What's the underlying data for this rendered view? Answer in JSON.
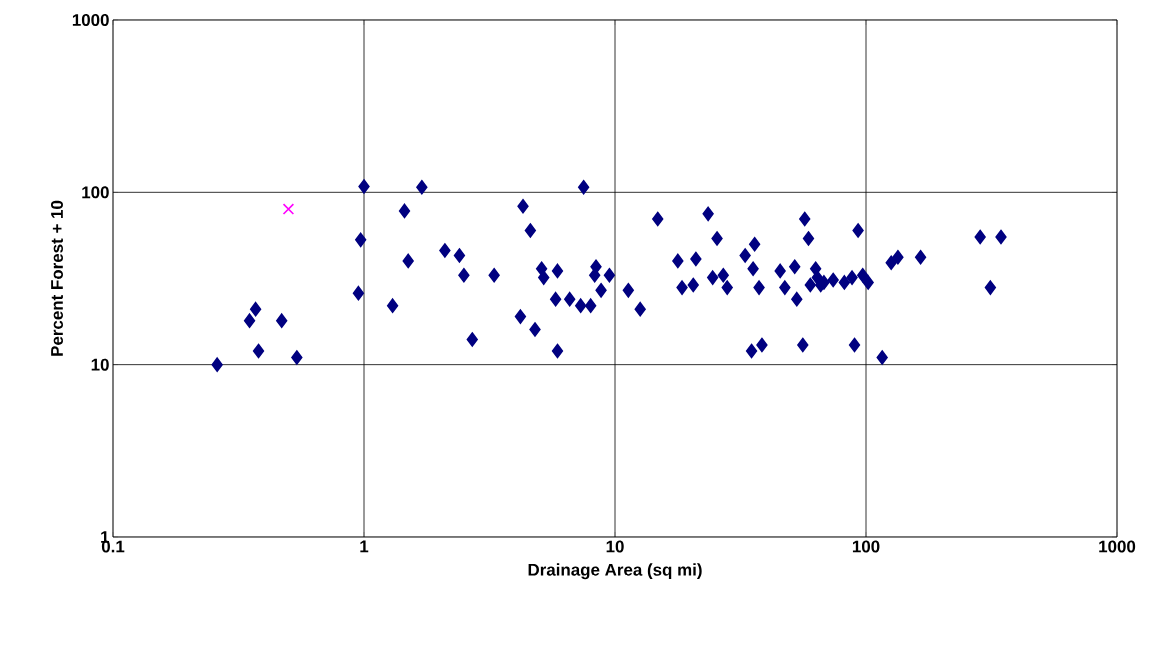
{
  "chart_data": {
    "type": "scatter",
    "xlabel": "Drainage Area (sq mi)",
    "ylabel": "Percent Forest + 10",
    "log": "xy",
    "grid": true,
    "xlim": [
      0.1,
      1000
    ],
    "ylim": [
      1,
      1000
    ],
    "xticks": [
      0.1,
      1,
      10,
      100,
      1000
    ],
    "yticks": [
      1,
      10,
      100,
      1000
    ],
    "series": [
      {
        "color": "#000080",
        "marker": "diamond",
        "x": [
          0.26,
          0.35,
          0.37,
          0.38,
          0.47,
          0.54,
          0.95,
          0.97,
          1.0,
          1.3,
          1.45,
          1.5,
          1.7,
          2.1,
          2.4,
          2.5,
          2.7,
          3.3,
          4.2,
          4.3,
          4.6,
          4.8,
          5.1,
          5.2,
          5.8,
          5.9,
          5.9,
          6.6,
          7.3,
          7.5,
          8.0,
          8.3,
          8.4,
          8.8,
          9.5,
          11.3,
          12.6,
          14.8,
          17.8,
          18.5,
          20.5,
          21,
          23.5,
          24.5,
          25.5,
          27,
          28,
          33,
          35,
          35.5,
          36,
          37.5,
          38.5,
          45.5,
          47.5,
          52,
          53,
          56,
          57,
          59,
          60,
          63,
          64,
          66,
          68,
          74,
          82,
          88,
          90,
          93,
          97,
          102,
          116,
          126,
          134,
          165,
          285,
          313,
          345
        ],
        "values": [
          10,
          18,
          21,
          12,
          18,
          11,
          26,
          53,
          108,
          22,
          78,
          40,
          107,
          46,
          43,
          33,
          14,
          33,
          19,
          83,
          60,
          16,
          36,
          32,
          24,
          12,
          35,
          24,
          22,
          107,
          22,
          33,
          37,
          27,
          33,
          27,
          21,
          70,
          40,
          28,
          29,
          41,
          75,
          32,
          54,
          33,
          28,
          43,
          12,
          36,
          50,
          28,
          13,
          35,
          28,
          37,
          24,
          13,
          70,
          54,
          29,
          36,
          32,
          29,
          30,
          31,
          30,
          32,
          13,
          60,
          33,
          30,
          11,
          39,
          42,
          42,
          55,
          28,
          55
        ]
      },
      {
        "color": "#ff00ff",
        "marker": "cross",
        "x": [
          0.5
        ],
        "values": [
          80
        ]
      }
    ]
  }
}
